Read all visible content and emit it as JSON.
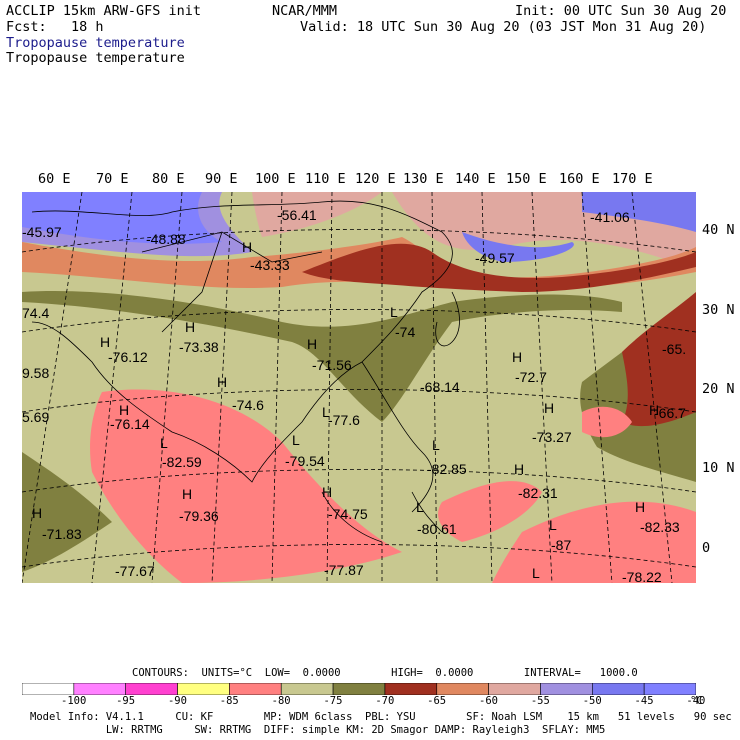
{
  "header": {
    "title_left": "ACCLIP 15km ARW-GFS init",
    "fcst": "Fcst:   18 h",
    "center": "NCAR/MMM",
    "init": "Init: 00 UTC Sun 30 Aug 20",
    "valid": "Valid: 18 UTC Sun 30 Aug 20 (03 JST Mon 31 Aug 20)",
    "field1": "Tropopause temperature",
    "field2": "Tropopause temperature"
  },
  "lon_labels": [
    "60 E",
    "70 E",
    "80 E",
    "90 E",
    "100 E",
    "110 E",
    "120 E",
    "130 E",
    "140 E",
    "150 E",
    "160 E",
    "170 E"
  ],
  "lat_labels": [
    "40 N",
    "30 N",
    "20 N",
    "10 N",
    "0"
  ],
  "map_labels": [
    {
      "t": "-45.97"
    },
    {
      "t": "-48.88"
    },
    {
      "t": "H"
    },
    {
      "t": "-43.33"
    },
    {
      "t": "-56.41"
    },
    {
      "t": "-41.06"
    },
    {
      "t": "-49.57"
    },
    {
      "t": "74.4"
    },
    {
      "t": "H"
    },
    {
      "t": "-76.12"
    },
    {
      "t": "H"
    },
    {
      "t": "-73.38"
    },
    {
      "t": "H"
    },
    {
      "t": "-71.56"
    },
    {
      "t": "L"
    },
    {
      "t": "-74"
    },
    {
      "t": "-68.14"
    },
    {
      "t": "H"
    },
    {
      "t": "-72.7"
    },
    {
      "t": "-65."
    },
    {
      "t": "9.58"
    },
    {
      "t": "H"
    },
    {
      "t": "-74.6"
    },
    {
      "t": "H"
    },
    {
      "t": "-76.14"
    },
    {
      "t": "L"
    },
    {
      "t": "-77.6"
    },
    {
      "t": "5.69"
    },
    {
      "t": "H"
    },
    {
      "t": "-66.7"
    },
    {
      "t": "H"
    },
    {
      "t": "-73.27"
    },
    {
      "t": "L"
    },
    {
      "t": "-79.54"
    },
    {
      "t": "L"
    },
    {
      "t": "-82.59"
    },
    {
      "t": "L"
    },
    {
      "t": "-82.85"
    },
    {
      "t": "H"
    },
    {
      "t": "-82.31"
    },
    {
      "t": "H"
    },
    {
      "t": "-79.36"
    },
    {
      "t": "H"
    },
    {
      "t": "-74.75"
    },
    {
      "t": "H"
    },
    {
      "t": "-71.83"
    },
    {
      "t": "L"
    },
    {
      "t": "-80.61"
    },
    {
      "t": "L"
    },
    {
      "t": "-87"
    },
    {
      "t": "H"
    },
    {
      "t": "-82.33"
    },
    {
      "t": "-77.67"
    },
    {
      "t": "-77.87"
    },
    {
      "t": "L"
    },
    {
      "t": "-78.22"
    }
  ],
  "legend": {
    "contours": "CONTOURS:  UNITS=°C  LOW=  0.0000        HIGH=  0.0000        INTERVAL=   1000.0",
    "ticks": [
      "-100",
      "-95",
      "-90",
      "-85",
      "-80",
      "-75",
      "-70",
      "-65",
      "-60",
      "-55",
      "-50",
      "-45",
      "-40"
    ],
    "unit": "°C",
    "colors": [
      "#ffffff",
      "#ff80ff",
      "#ff40d0",
      "#ffff80",
      "#ff8080",
      "#c8c890",
      "#808040",
      "#a03020",
      "#e08860",
      "#e0a8a0",
      "#a090e0",
      "#7878f0",
      "#8080ff"
    ]
  },
  "footer": {
    "line1": "Model Info: V4.1.1     CU: KF        MP: WDM 6class  PBL: YSU        SF: Noah LSM    15 km   51 levels   90 sec",
    "line2": "            LW: RRTMG     SW: RRTMG  DIFF: simple KM: 2D Smagor DAMP: Rayleigh3  SFLAY: MM5"
  }
}
